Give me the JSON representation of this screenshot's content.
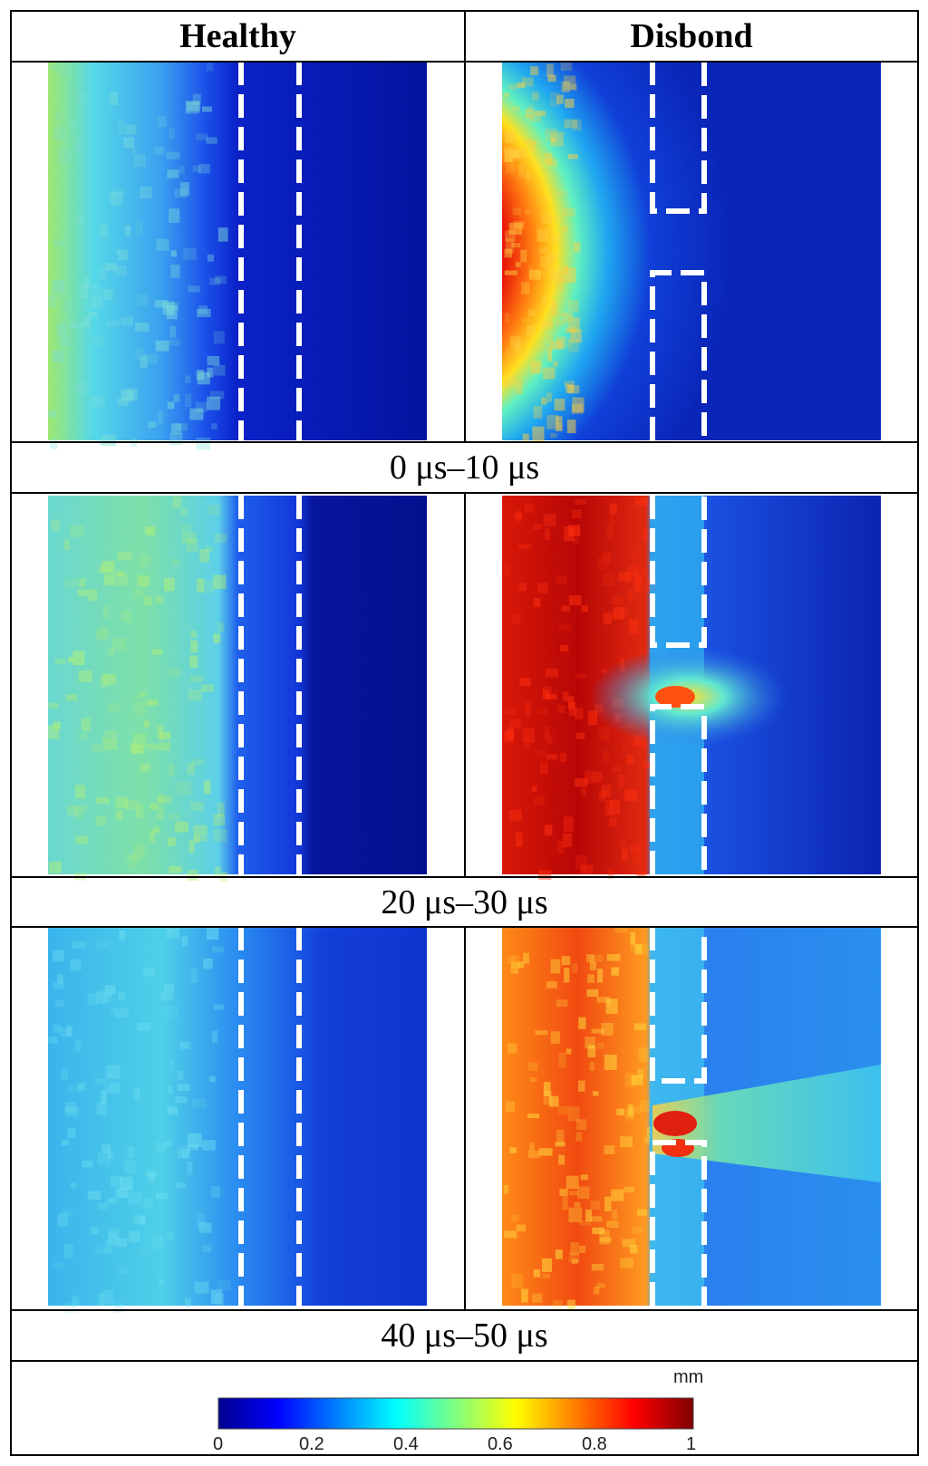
{
  "columns": {
    "left": "Healthy",
    "right": "Disbond"
  },
  "time_windows": [
    "0 μs–10 μs",
    "20 μs–30 μs",
    "40 μs–50 μs"
  ],
  "colorbar": {
    "unit": "mm",
    "ticks": [
      "0",
      "0.2",
      "0.4",
      "0.6",
      "0.8",
      "1"
    ],
    "min": 0,
    "max": 1,
    "colormap": "jet"
  },
  "panels": [
    {
      "column": "Healthy",
      "window": "0 μs–10 μs",
      "appearance": "light-blue/cyan field decaying to dark blue",
      "peak_level": 0.55
    },
    {
      "column": "Disbond",
      "window": "0 μs–10 μs",
      "appearance": "red/yellow curved wavefront decaying to blue",
      "peak_level": 0.95
    },
    {
      "column": "Healthy",
      "window": "20 μs–30 μs",
      "appearance": "cyan/light-green left region, blue strip, dark blue right",
      "peak_level": 0.55
    },
    {
      "column": "Disbond",
      "window": "20 μs–30 μs",
      "appearance": "dark red left region, cyan strip, leakage through gap",
      "peak_level": 1.0
    },
    {
      "column": "Healthy",
      "window": "40 μs–50 μs",
      "appearance": "cyan/light-blue left region, blue right",
      "peak_level": 0.45
    },
    {
      "column": "Disbond",
      "window": "40 μs–50 μs",
      "appearance": "orange/yellow left, cyan beam through gap to right",
      "peak_level": 0.9
    }
  ]
}
